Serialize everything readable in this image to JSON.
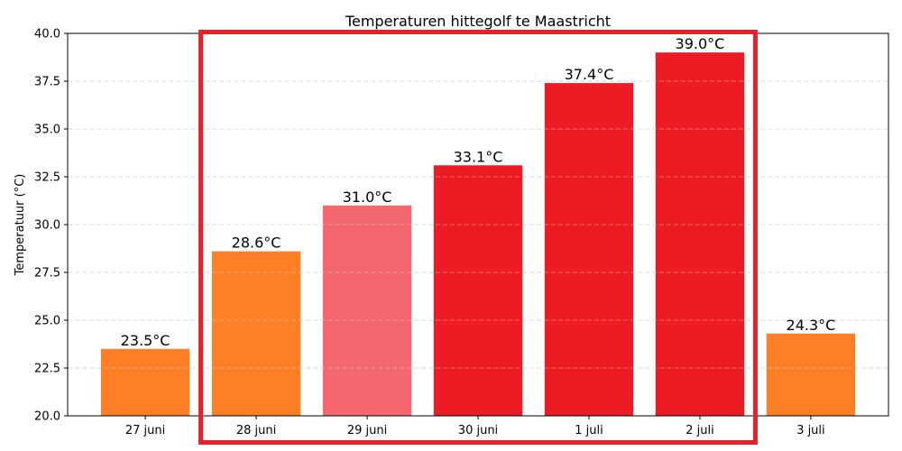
{
  "chart_data": {
    "type": "bar",
    "title": "Temperaturen hittegolf te Maastricht",
    "xlabel": "",
    "ylabel": "Temperatuur (°C)",
    "ylim": [
      20.0,
      40.0
    ],
    "yticks": [
      "20.0",
      "22.5",
      "25.0",
      "27.5",
      "30.0",
      "32.5",
      "35.0",
      "37.5",
      "40.0"
    ],
    "grid": "y dashed",
    "categories": [
      "27 juni",
      "28 juni",
      "29 juni",
      "30 juni",
      "1 juli",
      "2 juli",
      "3 juli"
    ],
    "values": [
      23.5,
      28.6,
      31.0,
      33.1,
      37.4,
      39.0,
      24.3
    ],
    "value_labels": [
      "23.5°C",
      "28.6°C",
      "31.0°C",
      "33.1°C",
      "37.4°C",
      "39.0°C",
      "24.3°C"
    ],
    "bar_colors": [
      "#ff7f27",
      "#ff7f27",
      "#f4676e",
      "#ed1c24",
      "#ed1c24",
      "#ed1c24",
      "#ff7f27"
    ],
    "highlight": {
      "categories": [
        "28 juni",
        "2 juli"
      ],
      "color": "#e8202a"
    }
  }
}
